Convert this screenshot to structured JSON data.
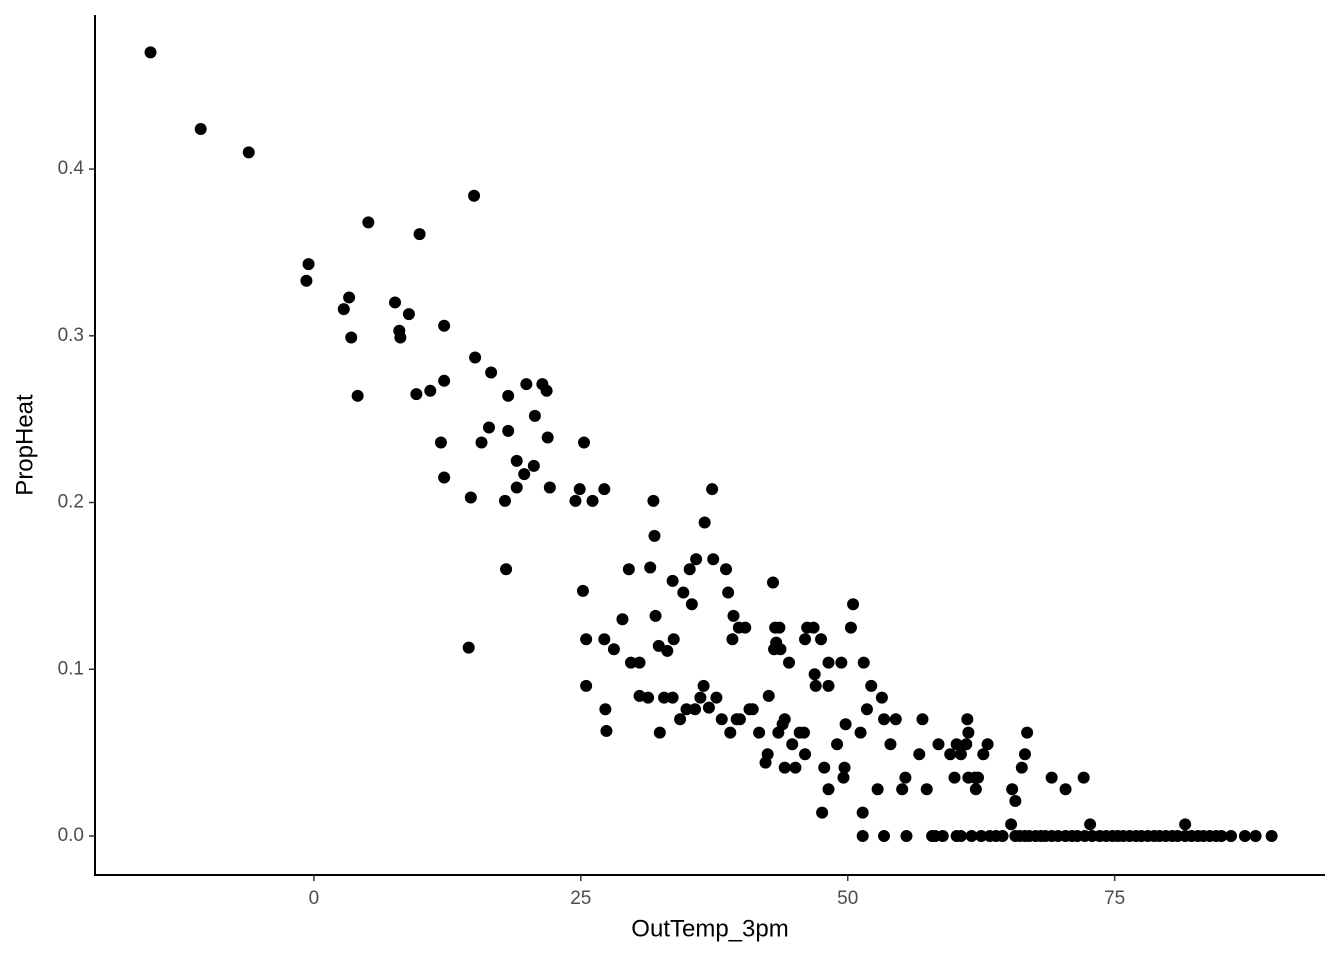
{
  "chart_data": {
    "type": "scatter",
    "x_label": "OutTemp_3pm",
    "y_label": "PropHeat",
    "color": "#000000",
    "xlim": [
      -20.5,
      94.7
    ],
    "ylim": [
      -0.0234,
      0.4924
    ],
    "xticks": [
      0,
      25,
      50,
      75
    ],
    "yticks": [
      {
        "value": 0,
        "label": "0.0"
      },
      0.1,
      0.2,
      0.3,
      0.4
    ],
    "x": [
      -15.3,
      -10.6,
      -6.1,
      -0.7,
      -0.5,
      2.8,
      3.3,
      3.5,
      4.1,
      5.1,
      7.6,
      8.0,
      8.1,
      8.9,
      9.6,
      9.9,
      10.9,
      11.9,
      12.2,
      12.2,
      12.2,
      14.5,
      14.7,
      15.0,
      15.1,
      15.7,
      16.4,
      16.6,
      17.9,
      18.0,
      18.2,
      18.2,
      19.0,
      19.0,
      19.7,
      19.9,
      20.6,
      20.7,
      21.4,
      21.8,
      21.9,
      22.1,
      24.5,
      24.9,
      25.3,
      25.2,
      25.5,
      25.5,
      26.1,
      27.2,
      27.2,
      27.3,
      27.4,
      28.1,
      28.9,
      29.5,
      29.7,
      30.5,
      30.5,
      31.3,
      31.5,
      31.8,
      31.9,
      32.0,
      32.3,
      32.4,
      32.8,
      33.1,
      33.6,
      33.7,
      33.6,
      34.3,
      34.6,
      34.9,
      35.2,
      35.4,
      35.7,
      35.8,
      36.2,
      36.5,
      36.6,
      37.0,
      37.3,
      37.4,
      37.7,
      38.2,
      38.6,
      38.8,
      39.0,
      39.2,
      39.3,
      39.6,
      39.8,
      39.9,
      40.4,
      40.8,
      41.1,
      41.7,
      42.3,
      42.5,
      42.6,
      43.0,
      43.1,
      43.2,
      43.3,
      43.5,
      43.6,
      43.7,
      43.9,
      44.1,
      44.1,
      44.5,
      44.8,
      45.1,
      45.5,
      45.9,
      46.0,
      46.0,
      46.2,
      46.8,
      46.9,
      47.0,
      47.5,
      47.6,
      47.8,
      48.2,
      48.2,
      48.2,
      49.0,
      49.4,
      49.6,
      49.7,
      49.8,
      50.3,
      50.5,
      51.2,
      51.4,
      51.4,
      51.5,
      51.8,
      52.2,
      52.8,
      53.2,
      53.4,
      53.4,
      54.0,
      54.5,
      55.1,
      55.4,
      55.5,
      56.7,
      57.0,
      57.4,
      57.9,
      58.2,
      58.5,
      58.9,
      59.6,
      60.0,
      60.2,
      60.2,
      60.6,
      60.6,
      61.1,
      61.2,
      61.3,
      61.3,
      61.6,
      61.9,
      62.0,
      62.2,
      62.5,
      62.7,
      63.1,
      63.3,
      63.9,
      64.5,
      65.3,
      65.4,
      65.7,
      65.7,
      66.1,
      66.3,
      66.6,
      66.8,
      66.6,
      67.0,
      67.6,
      68.1,
      68.5,
      69.1,
      69.1,
      69.7,
      70.4,
      70.4,
      71.0,
      71.5,
      72.1,
      72.2,
      72.7,
      72.9,
      73.6,
      74.2,
      74.8,
      75.3,
      75.8,
      76.4,
      77.0,
      77.5,
      78.1,
      78.7,
      79.2,
      79.8,
      80.4,
      80.9,
      81.6,
      81.6,
      82.2,
      82.8,
      83.3,
      83.9,
      84.5,
      85.0,
      85.9,
      87.2,
      88.2,
      89.7
    ],
    "values": [
      0.47,
      0.424,
      0.41,
      0.333,
      0.343,
      0.316,
      0.323,
      0.299,
      0.264,
      0.368,
      0.32,
      0.303,
      0.299,
      0.313,
      0.265,
      0.361,
      0.267,
      0.236,
      0.306,
      0.273,
      0.215,
      0.113,
      0.203,
      0.384,
      0.287,
      0.236,
      0.245,
      0.278,
      0.201,
      0.16,
      0.264,
      0.243,
      0.225,
      0.209,
      0.217,
      0.271,
      0.222,
      0.252,
      0.271,
      0.267,
      0.239,
      0.209,
      0.201,
      0.208,
      0.236,
      0.147,
      0.118,
      0.09,
      0.201,
      0.208,
      0.118,
      0.076,
      0.063,
      0.112,
      0.13,
      0.16,
      0.104,
      0.104,
      0.084,
      0.083,
      0.161,
      0.201,
      0.18,
      0.132,
      0.114,
      0.062,
      0.083,
      0.111,
      0.153,
      0.118,
      0.083,
      0.07,
      0.146,
      0.076,
      0.16,
      0.139,
      0.076,
      0.166,
      0.083,
      0.09,
      0.188,
      0.077,
      0.208,
      0.166,
      0.083,
      0.07,
      0.16,
      0.146,
      0.062,
      0.118,
      0.132,
      0.07,
      0.125,
      0.07,
      0.125,
      0.076,
      0.076,
      0.062,
      0.044,
      0.049,
      0.084,
      0.152,
      0.112,
      0.125,
      0.116,
      0.062,
      0.125,
      0.112,
      0.067,
      0.07,
      0.041,
      0.104,
      0.055,
      0.041,
      0.062,
      0.062,
      0.049,
      0.118,
      0.125,
      0.125,
      0.097,
      0.09,
      0.118,
      0.014,
      0.041,
      0.09,
      0.104,
      0.028,
      0.055,
      0.104,
      0.035,
      0.041,
      0.067,
      0.125,
      0.139,
      0.062,
      0,
      0.014,
      0.104,
      0.076,
      0.09,
      0.028,
      0.083,
      0.07,
      0,
      0.055,
      0.07,
      0.028,
      0.035,
      0,
      0.049,
      0.07,
      0.028,
      0,
      0,
      0.055,
      0,
      0.049,
      0.035,
      0.055,
      0,
      0.049,
      0,
      0.055,
      0.07,
      0.062,
      0.035,
      0,
      0.035,
      0.028,
      0.035,
      0,
      0.049,
      0.055,
      0,
      0,
      0,
      0.007,
      0.028,
      0.021,
      0,
      0,
      0.041,
      0.049,
      0.062,
      0,
      0,
      0,
      0,
      0,
      0.035,
      0,
      0,
      0.028,
      0,
      0,
      0,
      0.035,
      0,
      0.007,
      0,
      0,
      0,
      0,
      0,
      0,
      0,
      0,
      0,
      0,
      0,
      0,
      0,
      0,
      0,
      0.007,
      0,
      0,
      0,
      0,
      0,
      0,
      0,
      0,
      0,
      0,
      0
    ]
  }
}
